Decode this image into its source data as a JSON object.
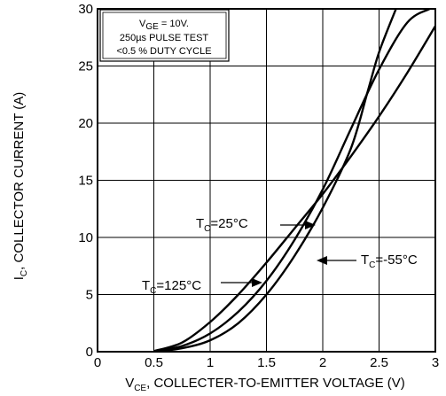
{
  "chart_data": {
    "type": "line",
    "xlabel": {
      "main": "V",
      "sub": "CE",
      "rest": ", COLLECTER-TO-EMITTER VOLTAGE (V)"
    },
    "ylabel": {
      "main": "I",
      "sub": "C",
      "rest": ", COLLECTOR CURRENT (A)"
    },
    "xlim": [
      0,
      3
    ],
    "ylim": [
      0,
      30
    ],
    "x_ticks": [
      "0",
      "0.5",
      "1",
      "1.5",
      "2",
      "2.5",
      "3"
    ],
    "y_ticks": [
      "0",
      "5",
      "10",
      "15",
      "20",
      "25",
      "30"
    ],
    "grid": true,
    "conditions_box": {
      "line1_main": "V",
      "line1_sub": "GE",
      "line1_rest": " = 10V.",
      "line2": "250µs PULSE TEST",
      "line3": "<0.5 % DUTY CYCLE"
    },
    "series": [
      {
        "name": "T_C=25°C",
        "label_main": "T",
        "label_sub": "C",
        "label_rest": "=25°C",
        "x": [
          0.5,
          0.75,
          1.0,
          1.25,
          1.5,
          1.75,
          2.0,
          2.25,
          2.5,
          2.75,
          2.95
        ],
        "y": [
          0.05,
          0.5,
          1.6,
          3.5,
          6.2,
          9.8,
          14.2,
          19.5,
          24.7,
          28.8,
          30.0
        ]
      },
      {
        "name": "T_C=125°C",
        "label_main": "T",
        "label_sub": "C",
        "label_rest": "=125°C",
        "x": [
          0.5,
          0.75,
          1.0,
          1.25,
          1.5,
          1.75,
          2.0,
          2.25,
          2.5,
          2.75,
          3.0
        ],
        "y": [
          0.05,
          0.8,
          2.6,
          5.0,
          7.8,
          10.8,
          13.8,
          17.1,
          20.6,
          24.4,
          28.5
        ]
      },
      {
        "name": "T_C=-55°C",
        "label_main": "T",
        "label_sub": "C",
        "label_rest": "=-55°C",
        "x": [
          0.5,
          0.75,
          1.0,
          1.25,
          1.5,
          1.75,
          2.0,
          2.25,
          2.4,
          2.5,
          2.65
        ],
        "y": [
          0.0,
          0.3,
          1.0,
          2.5,
          5.0,
          8.4,
          12.6,
          17.8,
          22.8,
          26.2,
          30.0
        ]
      }
    ],
    "line_color": "#000000",
    "background": "#ffffff"
  }
}
